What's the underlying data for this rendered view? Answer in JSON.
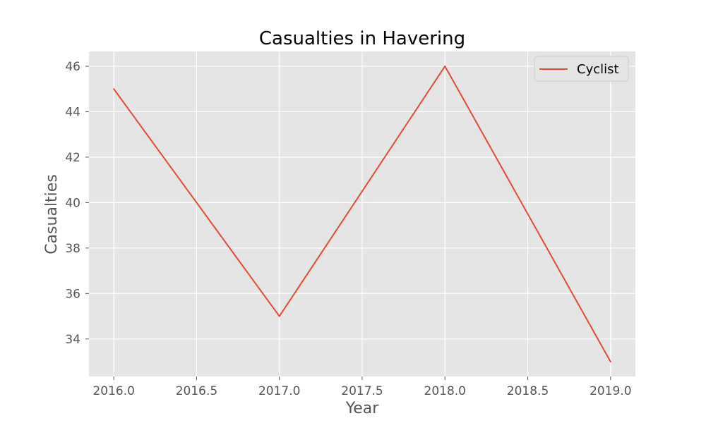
{
  "chart_data": {
    "type": "line",
    "title": "Casualties in Havering",
    "xlabel": "Year",
    "ylabel": "Casualties",
    "x": [
      2016,
      2017,
      2018,
      2019
    ],
    "series": [
      {
        "name": "Cyclist",
        "values": [
          45,
          35,
          46,
          33
        ],
        "color": "#E24A33"
      }
    ],
    "xlim": [
      2015.85,
      2019.15
    ],
    "ylim": [
      32.35,
      46.65
    ],
    "xticks": [
      "2016.0",
      "2016.5",
      "2017.0",
      "2017.5",
      "2018.0",
      "2018.5",
      "2019.0"
    ],
    "yticks": [
      "34",
      "36",
      "38",
      "40",
      "42",
      "44",
      "46"
    ],
    "grid": true,
    "legend_position": "top-right",
    "plot_background": "#E5E5E5"
  }
}
